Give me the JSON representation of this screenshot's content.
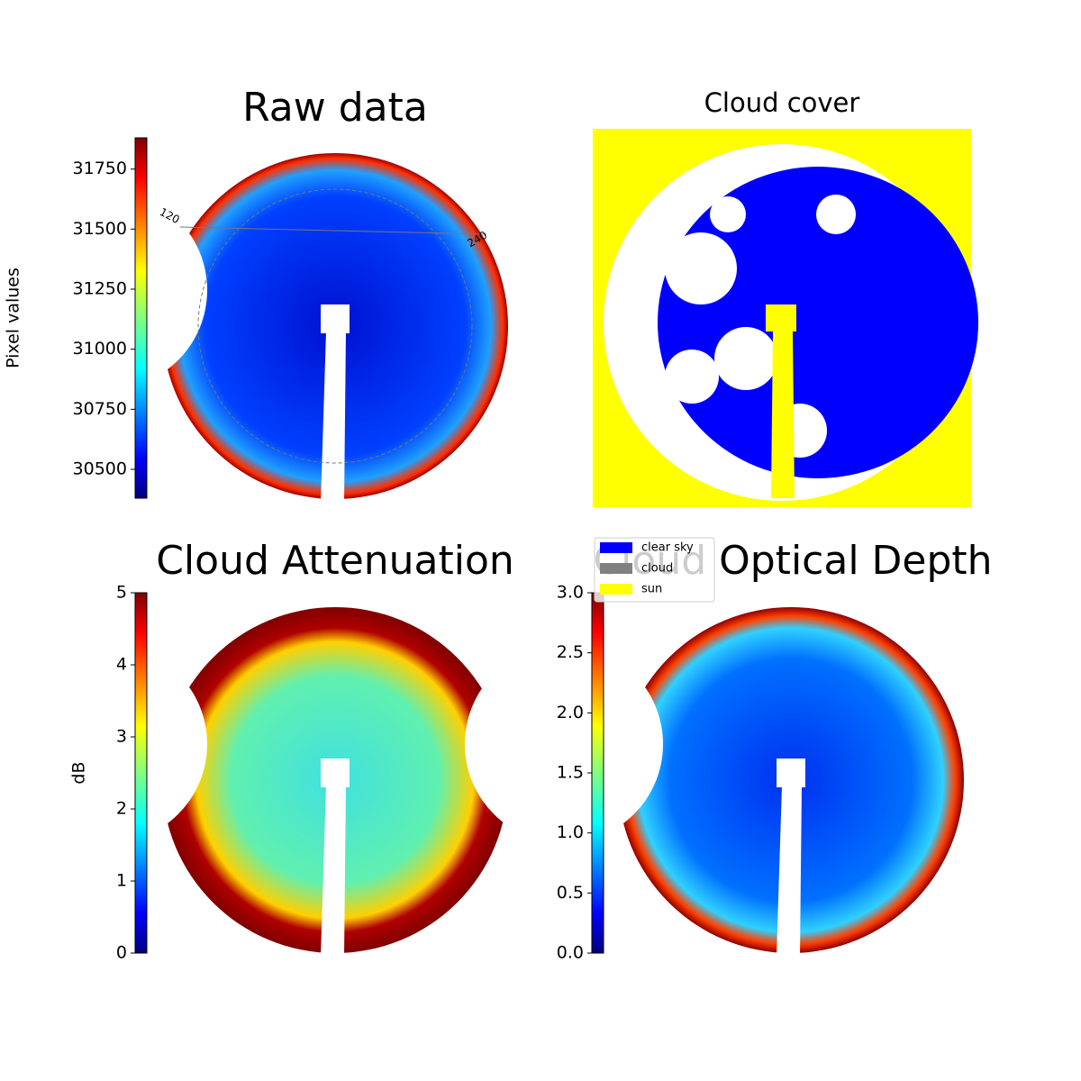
{
  "chart_data": [
    {
      "type": "image",
      "title": "Raw data",
      "ylabel": "Pixel values",
      "colormap": "jet",
      "ylim": [
        30380,
        31880
      ],
      "yticks": [
        30500,
        30750,
        31000,
        31250,
        31500,
        31750
      ],
      "annotations": [
        "120",
        "240"
      ]
    },
    {
      "type": "image",
      "title": "Cloud cover",
      "series": [
        {
          "name": "clear sky",
          "color": "#0000ff"
        },
        {
          "name": "cloud",
          "color": "#808080"
        },
        {
          "name": "sun",
          "color": "#ffff00"
        }
      ]
    },
    {
      "type": "image",
      "title": "Cloud Attenuation",
      "ylabel": "dB",
      "colormap": "jet",
      "ylim": [
        0,
        5
      ],
      "yticks": [
        0,
        1,
        2,
        3,
        4,
        5
      ]
    },
    {
      "type": "image",
      "title": "Cloud Optical Depth",
      "colormap": "jet",
      "ylim": [
        0,
        3
      ],
      "yticks": [
        {
          "value": 0,
          "label": "0.0"
        },
        0.5,
        {
          "value": 1,
          "label": "1.0"
        },
        1.5,
        {
          "value": 2,
          "label": "2.0"
        },
        2.5,
        {
          "value": 3,
          "label": "3.0"
        }
      ]
    }
  ]
}
